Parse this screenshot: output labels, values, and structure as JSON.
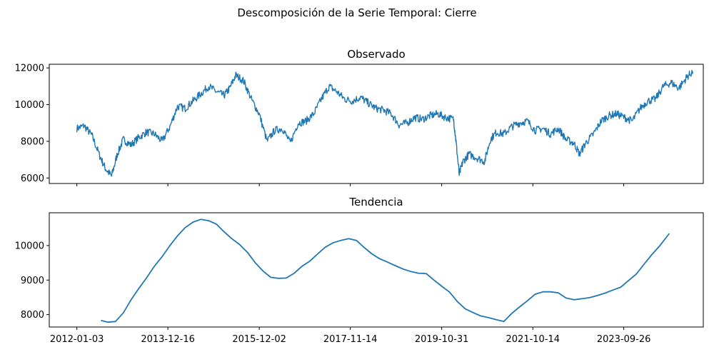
{
  "figure": {
    "suptitle": "Descomposición de la Serie Temporal: Cierre",
    "line_color": "#1f77b4"
  },
  "chart_data": [
    {
      "type": "line",
      "title": "Observado",
      "xlabel": "",
      "ylabel": "",
      "xlim": [
        "2011-06-01",
        "2025-06-10"
      ],
      "ylim": [
        5700,
        12200
      ],
      "yticks": [
        6000,
        8000,
        10000,
        12000
      ],
      "xticks": [
        "2012-01-03",
        "2013-12-16",
        "2015-12-02",
        "2017-11-14",
        "2019-10-31",
        "2021-10-14",
        "2023-09-26"
      ],
      "show_xtick_labels": false,
      "grid": false,
      "series": [
        {
          "x": [
            "2012-01-03",
            "2012-03-01",
            "2012-05-01",
            "2012-07-01",
            "2012-08-15",
            "2012-10-01",
            "2012-11-15",
            "2013-01-01",
            "2013-03-01",
            "2013-05-01",
            "2013-07-01",
            "2013-09-01",
            "2013-11-01",
            "2014-01-01",
            "2014-03-01",
            "2014-05-01",
            "2014-07-01",
            "2014-09-01",
            "2014-11-01",
            "2015-01-01",
            "2015-03-01",
            "2015-04-15",
            "2015-06-01",
            "2015-08-01",
            "2015-10-01",
            "2015-12-01",
            "2016-02-01",
            "2016-04-01",
            "2016-06-01",
            "2016-08-01",
            "2016-10-01",
            "2016-12-01",
            "2017-02-01",
            "2017-04-01",
            "2017-06-01",
            "2017-08-01",
            "2017-10-01",
            "2017-12-01",
            "2018-02-01",
            "2018-04-01",
            "2018-06-01",
            "2018-08-01",
            "2018-10-01",
            "2018-12-01",
            "2019-02-01",
            "2019-04-01",
            "2019-06-01",
            "2019-08-01",
            "2019-10-01",
            "2019-12-01",
            "2020-02-01",
            "2020-02-20",
            "2020-03-16",
            "2020-04-15",
            "2020-06-01",
            "2020-08-01",
            "2020-10-01",
            "2020-11-15",
            "2021-01-01",
            "2021-03-01",
            "2021-05-01",
            "2021-07-01",
            "2021-09-01",
            "2021-11-01",
            "2022-01-01",
            "2022-03-01",
            "2022-05-01",
            "2022-07-01",
            "2022-09-01",
            "2022-10-15",
            "2022-12-01",
            "2023-02-01",
            "2023-04-01",
            "2023-06-01",
            "2023-08-01",
            "2023-10-01",
            "2023-12-01",
            "2024-02-01",
            "2024-04-01",
            "2024-06-01",
            "2024-08-01",
            "2024-10-01",
            "2024-12-01",
            "2025-02-01",
            "2025-03-20"
          ],
          "y": [
            8700,
            8850,
            8300,
            7200,
            6500,
            6100,
            7300,
            8100,
            7800,
            8200,
            8500,
            8400,
            8000,
            8800,
            9900,
            9800,
            10200,
            10600,
            11000,
            10700,
            10500,
            10900,
            11600,
            11300,
            10300,
            9500,
            8000,
            8600,
            8700,
            7900,
            9000,
            9100,
            9500,
            10300,
            11000,
            10700,
            10300,
            10200,
            10400,
            10100,
            9800,
            9700,
            9500,
            8900,
            9000,
            9300,
            9200,
            9400,
            9500,
            9300,
            9200,
            8000,
            6200,
            6900,
            7300,
            7100,
            6900,
            8100,
            8500,
            8400,
            8800,
            9000,
            9100,
            8600,
            8700,
            8400,
            8700,
            8100,
            7900,
            7300,
            7900,
            8400,
            9100,
            9400,
            9500,
            9300,
            9100,
            9800,
            10200,
            10300,
            11000,
            11200,
            10900,
            11500,
            11800
          ]
        }
      ]
    },
    {
      "type": "line",
      "title": "Tendencia",
      "xlabel": "",
      "ylabel": "",
      "xlim": [
        "2011-06-01",
        "2025-06-10"
      ],
      "ylim": [
        7640,
        10950
      ],
      "yticks": [
        8000,
        9000,
        10000
      ],
      "xticks": [
        "2012-01-03",
        "2013-12-16",
        "2015-12-02",
        "2017-11-14",
        "2019-10-31",
        "2021-10-14",
        "2023-09-26"
      ],
      "show_xtick_labels": true,
      "grid": false,
      "series": [
        {
          "x": [
            "2012-07-10",
            "2012-09-01",
            "2012-11-01",
            "2013-01-01",
            "2013-03-01",
            "2013-05-01",
            "2013-07-01",
            "2013-09-01",
            "2013-11-01",
            "2014-01-01",
            "2014-03-01",
            "2014-05-01",
            "2014-07-01",
            "2014-09-01",
            "2014-11-01",
            "2015-01-01",
            "2015-03-01",
            "2015-05-01",
            "2015-07-01",
            "2015-09-01",
            "2015-11-01",
            "2016-01-01",
            "2016-03-01",
            "2016-05-01",
            "2016-07-01",
            "2016-09-01",
            "2016-11-01",
            "2017-01-01",
            "2017-03-01",
            "2017-05-01",
            "2017-07-01",
            "2017-09-01",
            "2017-11-01",
            "2018-01-01",
            "2018-03-01",
            "2018-05-01",
            "2018-07-01",
            "2018-09-01",
            "2018-11-01",
            "2019-01-01",
            "2019-03-01",
            "2019-05-01",
            "2019-07-01",
            "2019-09-01",
            "2019-11-01",
            "2020-01-01",
            "2020-03-01",
            "2020-05-01",
            "2020-07-01",
            "2020-09-01",
            "2020-11-01",
            "2021-01-01",
            "2021-03-01",
            "2021-05-01",
            "2021-07-01",
            "2021-09-01",
            "2021-11-01",
            "2022-01-01",
            "2022-03-01",
            "2022-05-01",
            "2022-07-01",
            "2022-09-01",
            "2022-11-01",
            "2023-01-01",
            "2023-03-01",
            "2023-05-01",
            "2023-07-01",
            "2023-09-01",
            "2023-11-01",
            "2024-01-01",
            "2024-03-01",
            "2024-05-01",
            "2024-07-01",
            "2024-09-17"
          ],
          "y": [
            7830,
            7780,
            7800,
            8050,
            8420,
            8750,
            9060,
            9400,
            9680,
            10000,
            10280,
            10520,
            10680,
            10760,
            10720,
            10620,
            10400,
            10200,
            10030,
            9800,
            9500,
            9260,
            9080,
            9050,
            9060,
            9200,
            9400,
            9550,
            9750,
            9950,
            10080,
            10150,
            10200,
            10150,
            9950,
            9760,
            9620,
            9520,
            9420,
            9320,
            9250,
            9200,
            9190,
            9000,
            8820,
            8650,
            8380,
            8170,
            8060,
            7960,
            7910,
            7850,
            7800,
            8030,
            8220,
            8400,
            8590,
            8660,
            8660,
            8630,
            8480,
            8430,
            8460,
            8490,
            8550,
            8620,
            8710,
            8790,
            8980,
            9170,
            9450,
            9730,
            9980,
            10350
          ]
        }
      ]
    }
  ]
}
